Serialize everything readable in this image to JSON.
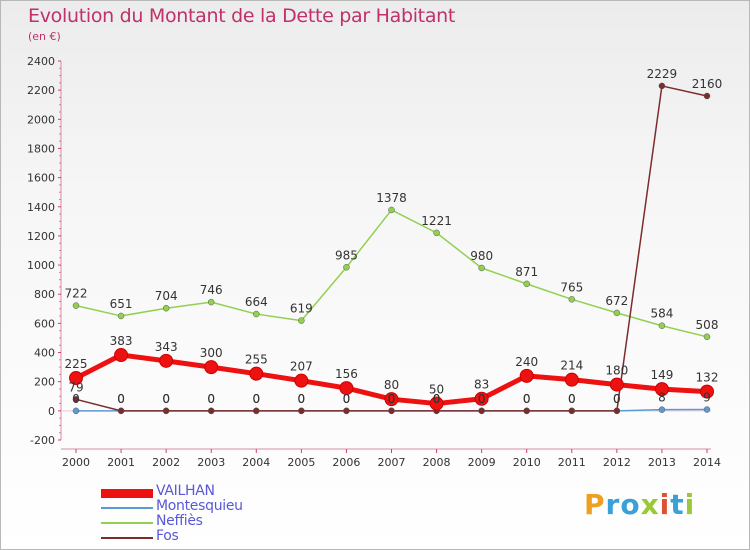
{
  "title": "Evolution du Montant de la Dette par Habitant",
  "subtitle": "(en €)",
  "logo_text": "Proxiti",
  "chart_data": {
    "type": "line",
    "x": [
      2000,
      2001,
      2002,
      2003,
      2004,
      2005,
      2006,
      2007,
      2008,
      2009,
      2010,
      2011,
      2012,
      2013,
      2014
    ],
    "ylim": [
      -200,
      2400
    ],
    "yticks": [
      -200,
      0,
      200,
      400,
      600,
      800,
      1000,
      1200,
      1400,
      1600,
      1800,
      2000,
      2200,
      2400
    ],
    "grid": false,
    "legend_position": "bottom-left",
    "series": [
      {
        "name": "VAILHAN",
        "color": "#ee1111",
        "labels": [
          "225",
          "383",
          "343",
          "300",
          "255",
          "207",
          "156",
          "80",
          "50",
          "83",
          "240",
          "214",
          "180",
          "149",
          "132"
        ],
        "values": [
          225,
          383,
          343,
          300,
          255,
          207,
          156,
          80,
          50,
          83,
          240,
          214,
          180,
          149,
          132
        ]
      },
      {
        "name": "Montesquieu",
        "color": "#5b9bd5",
        "labels": [
          "0",
          "0",
          "0",
          "0",
          "0",
          "0",
          "0",
          "0",
          "0",
          "0",
          "0",
          "0",
          "0",
          "8",
          "9"
        ],
        "values": [
          0,
          0,
          0,
          0,
          0,
          0,
          0,
          0,
          0,
          0,
          0,
          0,
          0,
          8,
          9
        ]
      },
      {
        "name": "Neffiès",
        "color": "#92d050",
        "labels": [
          "722",
          "651",
          "704",
          "746",
          "664",
          "619",
          "985",
          "1378",
          "1221",
          "980",
          "871",
          "765",
          "672",
          "584",
          "508"
        ],
        "values": [
          722,
          651,
          704,
          746,
          664,
          619,
          985,
          1378,
          1221,
          980,
          871,
          765,
          672,
          584,
          508
        ]
      },
      {
        "name": "Fos",
        "color": "#7b2c2c",
        "labels": [
          "79",
          "0",
          "0",
          "0",
          "0",
          "0",
          "0",
          "0",
          "0",
          "0",
          "0",
          "0",
          "0",
          "2229",
          "2160"
        ],
        "values": [
          79,
          0,
          0,
          0,
          0,
          0,
          0,
          0,
          0,
          0,
          0,
          0,
          0,
          2229,
          2160
        ]
      }
    ]
  }
}
